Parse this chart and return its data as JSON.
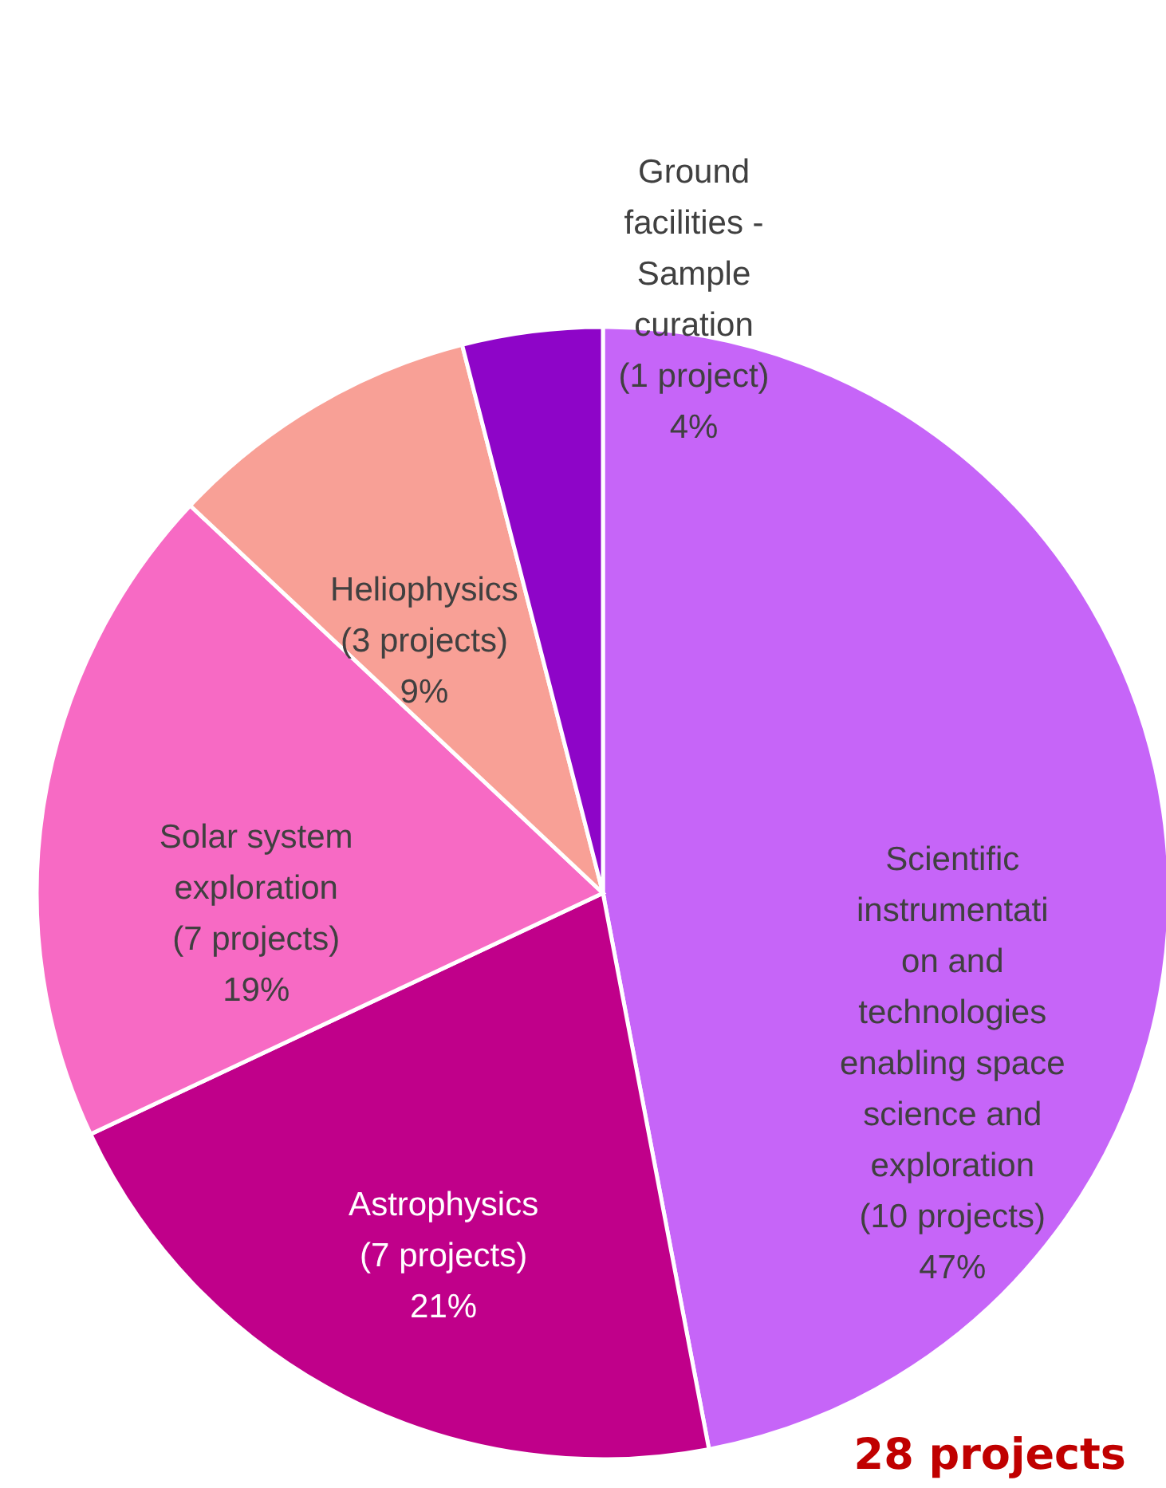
{
  "chart_data": {
    "type": "pie",
    "categories": [
      "Scientific instrumentati on and technologies enabling space science and exploration (10 projects)",
      "Astrophysics (7 projects)",
      "Solar system exploration (7 projects)",
      "Heliophysics (3 projects)",
      "Ground facilities - Sample curation (1 project)"
    ],
    "values": [
      47,
      21,
      19,
      9,
      4
    ],
    "value_labels": [
      "47%",
      "21%",
      "19%",
      "9%",
      "4%"
    ],
    "colors": [
      "#c665f8",
      "#c0008a",
      "#f76ac4",
      "#f8a096",
      "#8e05c8"
    ],
    "annotations": [
      "28 projects"
    ]
  }
}
